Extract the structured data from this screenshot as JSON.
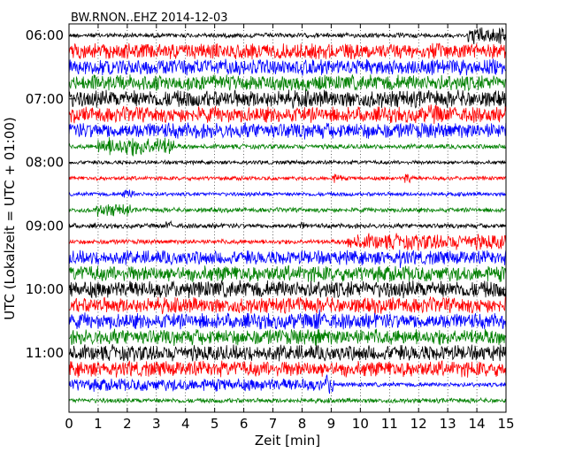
{
  "chart_data": {
    "type": "line",
    "title": "BW.RNON..EHZ 2014-12-03",
    "xlabel": "Zeit  [min]",
    "ylabel": "UTC (Lokalzeit = UTC + 01:00)",
    "xlim": [
      0,
      15
    ],
    "x_ticks": [
      "0",
      "1",
      "2",
      "3",
      "4",
      "5",
      "6",
      "7",
      "8",
      "9",
      "10",
      "11",
      "12",
      "13",
      "14",
      "15"
    ],
    "y_ticks": [
      "06:00",
      "07:00",
      "08:00",
      "09:00",
      "10:00",
      "11:00"
    ],
    "grid": "vertical-dotted",
    "color_cycle": [
      "#000000",
      "#ff0000",
      "#0000ff",
      "#008000"
    ],
    "traces": [
      {
        "label": "06:00",
        "color": "#000000",
        "amplitude": 0.3,
        "events": [
          {
            "start": 13.7,
            "end": 15,
            "amp": 1.1
          }
        ]
      },
      {
        "label": "06:15",
        "color": "#ff0000",
        "amplitude": 1.0,
        "events": []
      },
      {
        "label": "06:30",
        "color": "#0000ff",
        "amplitude": 1.0,
        "events": []
      },
      {
        "label": "06:45",
        "color": "#008000",
        "amplitude": 1.0,
        "events": []
      },
      {
        "label": "07:00",
        "color": "#000000",
        "amplitude": 1.1,
        "events": []
      },
      {
        "label": "07:15",
        "color": "#ff0000",
        "amplitude": 1.0,
        "events": [
          {
            "start": 12.3,
            "end": 12.8,
            "amp": 1.3
          }
        ]
      },
      {
        "label": "07:30",
        "color": "#0000ff",
        "amplitude": 1.0,
        "events": []
      },
      {
        "label": "07:45",
        "color": "#008000",
        "amplitude": 0.3,
        "events": [
          {
            "start": 1.0,
            "end": 3.6,
            "amp": 1.2
          }
        ]
      },
      {
        "label": "08:00",
        "color": "#000000",
        "amplitude": 0.25,
        "events": []
      },
      {
        "label": "08:15",
        "color": "#ff0000",
        "amplitude": 0.25,
        "events": [
          {
            "start": 9.0,
            "end": 9.4,
            "amp": 0.6
          },
          {
            "start": 11.5,
            "end": 11.8,
            "amp": 0.8
          }
        ]
      },
      {
        "label": "08:30",
        "color": "#0000ff",
        "amplitude": 0.25,
        "events": [
          {
            "start": 1.8,
            "end": 2.3,
            "amp": 0.6
          }
        ]
      },
      {
        "label": "08:45",
        "color": "#008000",
        "amplitude": 0.3,
        "events": [
          {
            "start": 0.9,
            "end": 2.1,
            "amp": 0.8
          }
        ]
      },
      {
        "label": "09:00",
        "color": "#000000",
        "amplitude": 0.3,
        "events": [
          {
            "start": 3.3,
            "end": 3.5,
            "amp": 0.6
          },
          {
            "start": 7.9,
            "end": 8.1,
            "amp": 0.5
          }
        ]
      },
      {
        "label": "09:15",
        "color": "#ff0000",
        "amplitude": 0.3,
        "events": [
          {
            "start": 9.55,
            "end": 15,
            "amp": 1.0
          }
        ]
      },
      {
        "label": "09:30",
        "color": "#0000ff",
        "amplitude": 0.9,
        "events": [
          {
            "start": 11.3,
            "end": 11.6,
            "amp": 1.2
          }
        ]
      },
      {
        "label": "09:45",
        "color": "#008000",
        "amplitude": 1.0,
        "events": []
      },
      {
        "label": "10:00",
        "color": "#000000",
        "amplitude": 1.1,
        "events": []
      },
      {
        "label": "10:15",
        "color": "#ff0000",
        "amplitude": 1.0,
        "events": [
          {
            "start": 7.9,
            "end": 8.1,
            "amp": 1.3
          }
        ]
      },
      {
        "label": "10:30",
        "color": "#0000ff",
        "amplitude": 1.0,
        "events": [
          {
            "start": 8.4,
            "end": 8.6,
            "amp": 1.6
          }
        ]
      },
      {
        "label": "10:45",
        "color": "#008000",
        "amplitude": 1.0,
        "events": [
          {
            "start": 8.45,
            "end": 8.6,
            "amp": 1.6
          }
        ]
      },
      {
        "label": "11:00",
        "color": "#000000",
        "amplitude": 1.0,
        "events": []
      },
      {
        "label": "11:15",
        "color": "#ff0000",
        "amplitude": 1.0,
        "events": []
      },
      {
        "label": "11:30",
        "color": "#0000ff",
        "amplitude": 0.8,
        "events": [
          {
            "start": 8.8,
            "end": 9.1,
            "amp": 1.4
          }
        ],
        "taper_after": 9.1
      },
      {
        "label": "11:45",
        "color": "#008000",
        "amplitude": 0.3,
        "events": []
      }
    ]
  }
}
